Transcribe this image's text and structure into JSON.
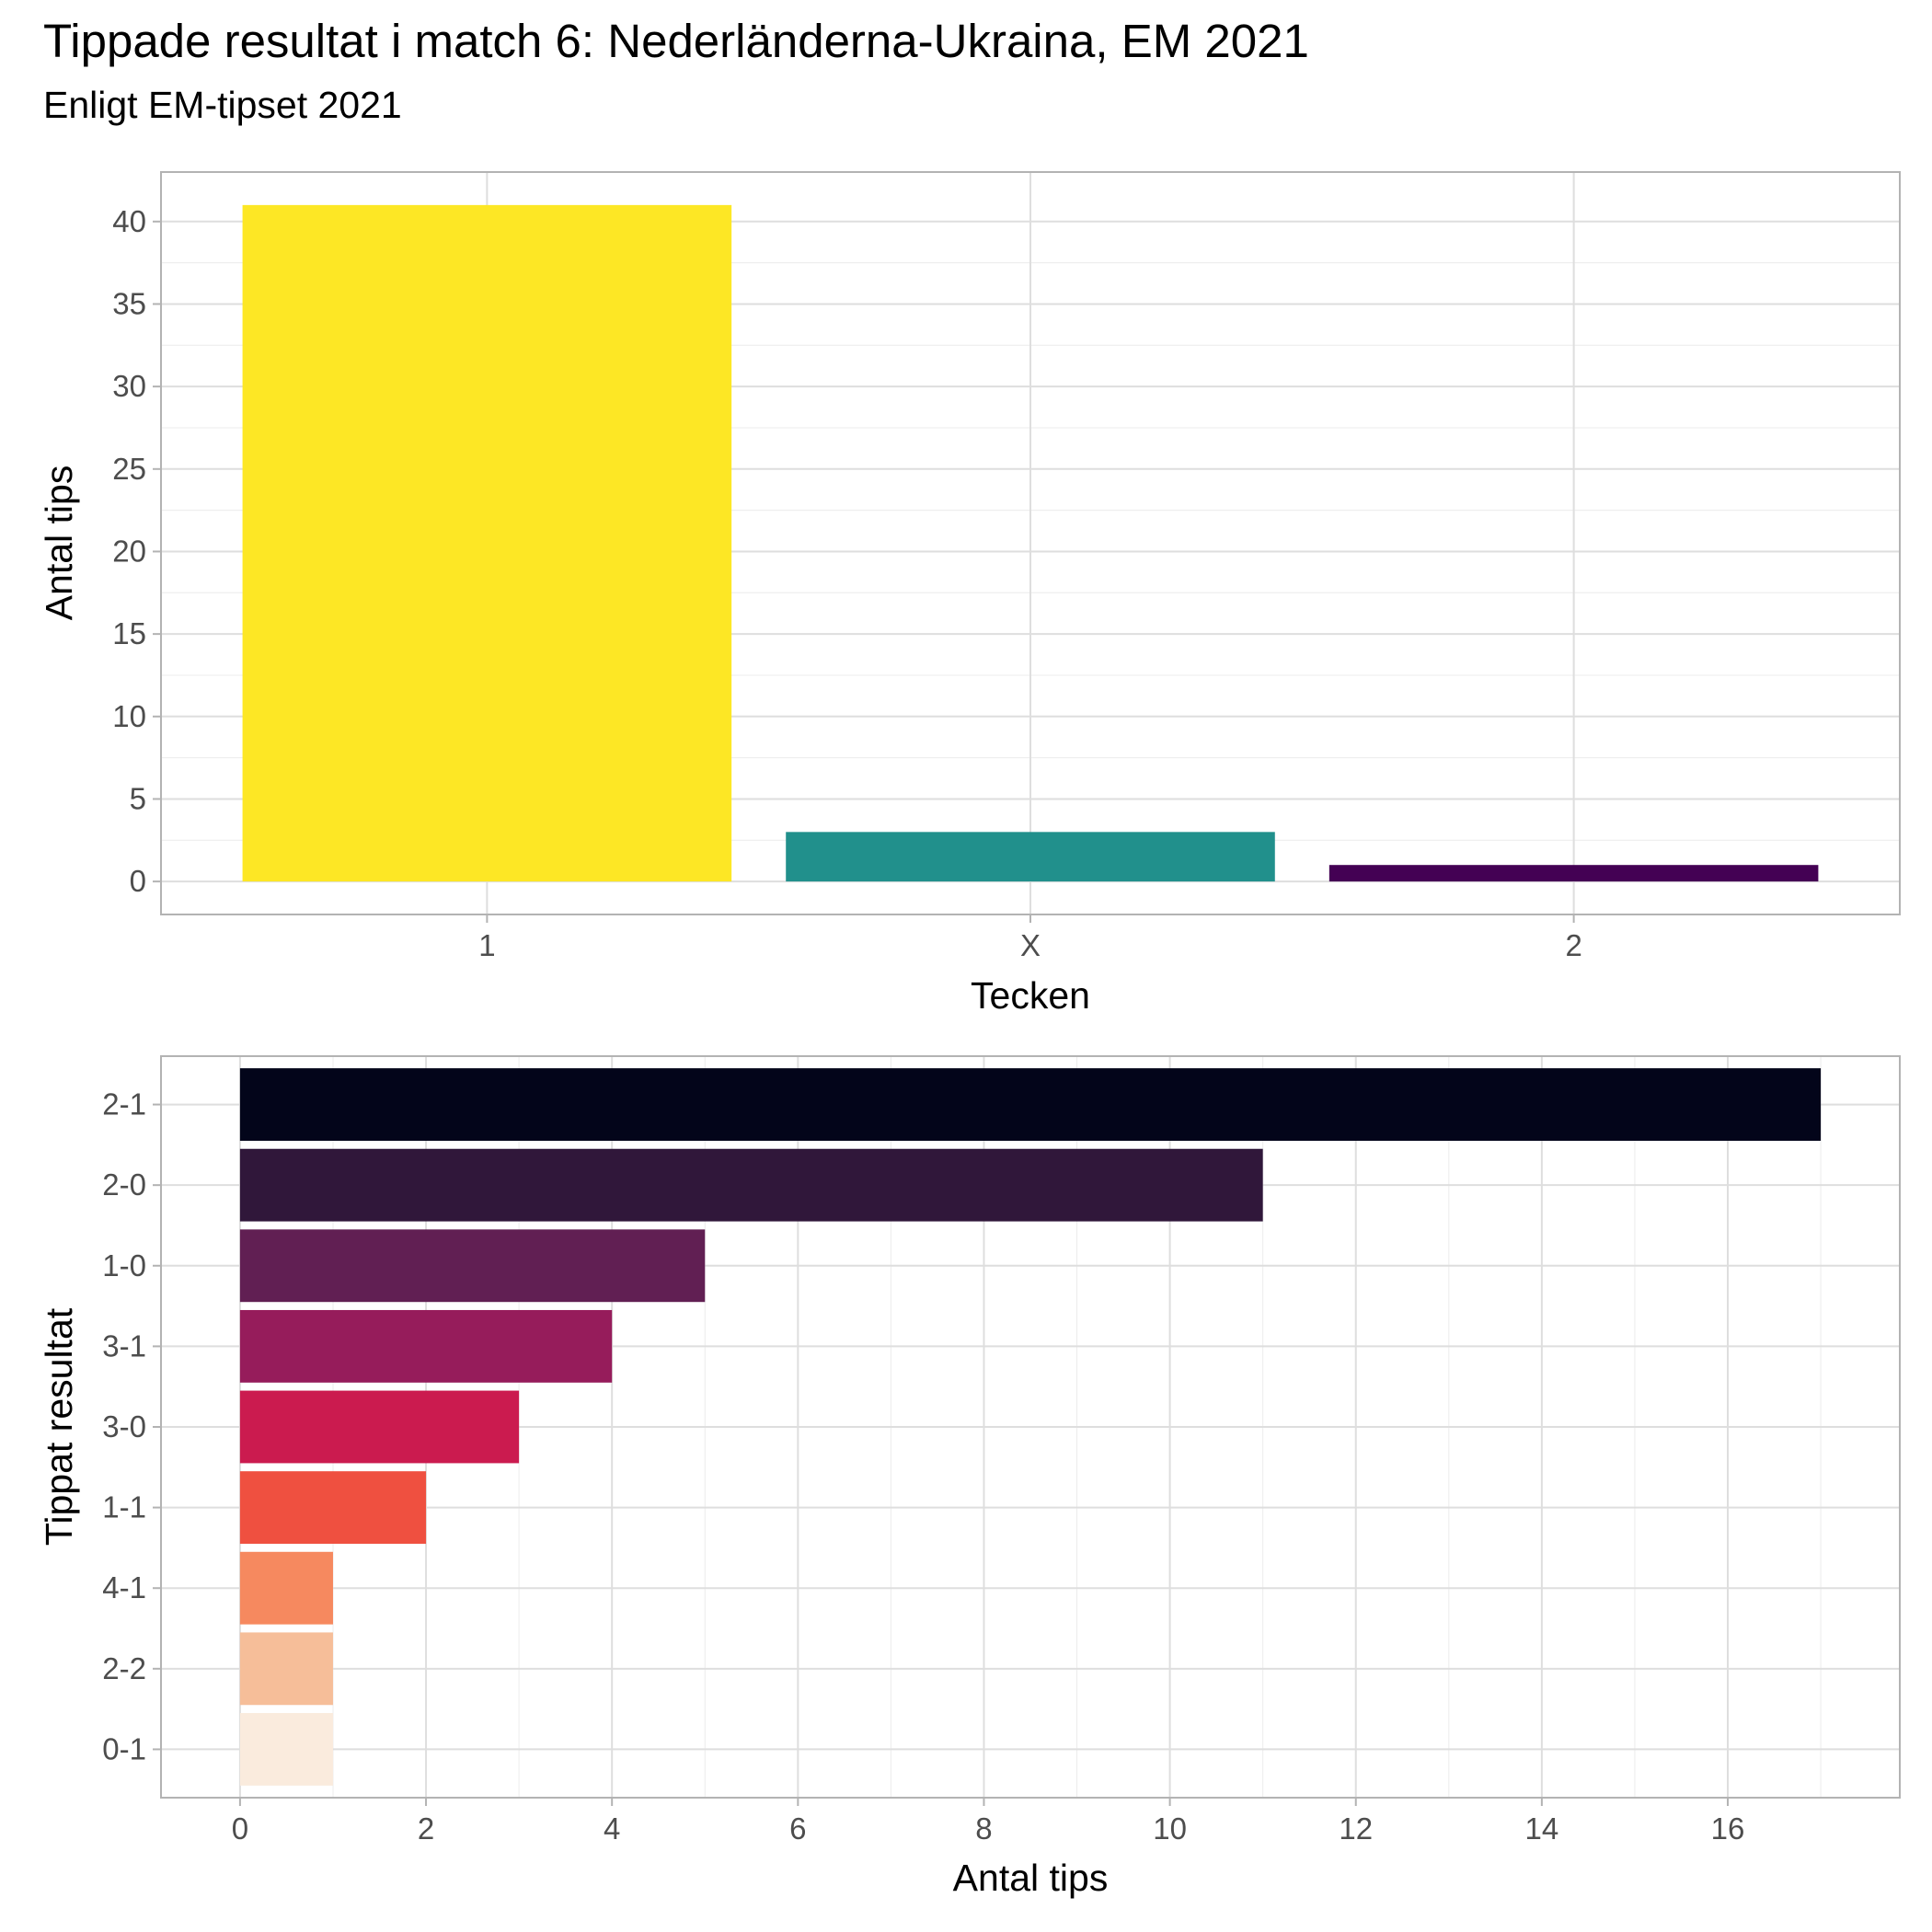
{
  "figure": {
    "title": "Tippade resultat i match 6: Nederländerna-Ukraina, EM 2021",
    "subtitle": "Enligt EM-tipset 2021"
  },
  "chart_data": [
    {
      "type": "bar",
      "orientation": "vertical",
      "categories": [
        "1",
        "X",
        "2"
      ],
      "values": [
        41,
        3,
        1
      ],
      "colors": [
        "#FDE725",
        "#21908C",
        "#440154"
      ],
      "xlabel": "Tecken",
      "ylabel": "Antal tips",
      "ylim": [
        -2,
        43
      ],
      "yticks": [
        0,
        5,
        10,
        15,
        20,
        25,
        30,
        35,
        40
      ],
      "grid": true,
      "legend": "none"
    },
    {
      "type": "bar",
      "orientation": "horizontal",
      "categories": [
        "2-1",
        "2-0",
        "1-0",
        "3-1",
        "3-0",
        "1-1",
        "4-1",
        "2-2",
        "0-1"
      ],
      "values": [
        17,
        11,
        5,
        4,
        3,
        2,
        1,
        1,
        1
      ],
      "colors": [
        "#03051A",
        "#30173A",
        "#611F53",
        "#961C5B",
        "#CB1B4F",
        "#EF5040",
        "#F6895F",
        "#F6BE99",
        "#FAEBDD"
      ],
      "xlabel": "Antal tips",
      "ylabel": "Tippat resultat",
      "xlim": [
        -0.85,
        17.85
      ],
      "xticks": [
        0,
        2,
        4,
        6,
        8,
        10,
        12,
        14,
        16
      ],
      "grid": true,
      "legend": "none"
    }
  ]
}
